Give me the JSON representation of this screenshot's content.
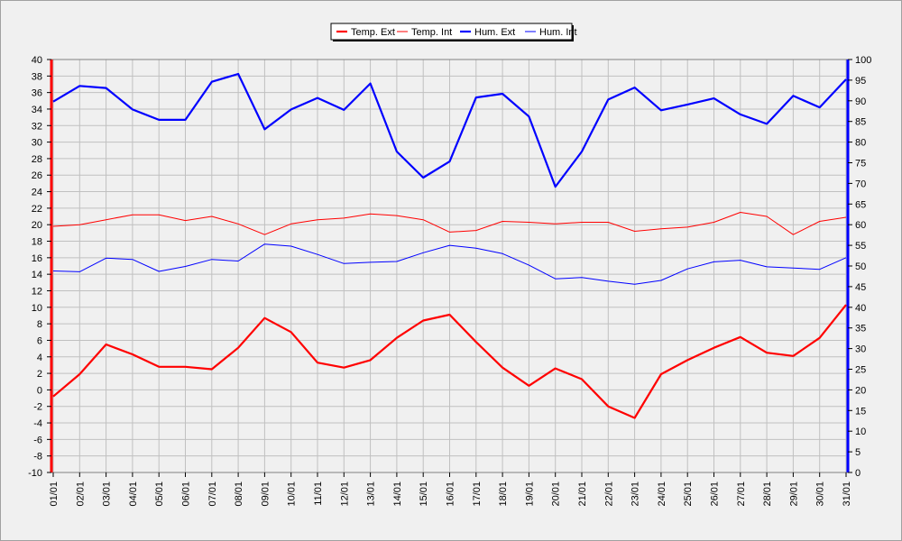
{
  "chart_data": {
    "type": "line",
    "categories": [
      "01/01",
      "02/01",
      "03/01",
      "04/01",
      "05/01",
      "06/01",
      "07/01",
      "08/01",
      "09/01",
      "10/01",
      "11/01",
      "12/01",
      "13/01",
      "14/01",
      "15/01",
      "16/01",
      "17/01",
      "18/01",
      "19/01",
      "20/01",
      "21/01",
      "22/01",
      "23/01",
      "24/01",
      "25/01",
      "26/01",
      "27/01",
      "28/01",
      "29/01",
      "30/01",
      "31/01"
    ],
    "y_left": {
      "ticks": [
        40,
        38,
        36,
        34,
        32,
        30,
        28,
        26,
        24,
        22,
        20,
        18,
        16,
        14,
        12,
        10,
        8,
        6,
        4,
        2,
        0,
        -2,
        -4,
        -6,
        -8,
        -10
      ],
      "ylim": [
        -10,
        40
      ],
      "color": "#ff0000"
    },
    "y_right": {
      "ticks": [
        100,
        95,
        90,
        85,
        80,
        75,
        70,
        65,
        60,
        55,
        50,
        45,
        40,
        35,
        30,
        25,
        20,
        15,
        10,
        5,
        0
      ],
      "ylim": [
        0,
        100
      ],
      "color": "#0000ff"
    },
    "grid": true,
    "legend_position": "top-center",
    "series": [
      {
        "name": "Temp. Ext",
        "axis": "left",
        "color": "#ff0000",
        "weight": "thick",
        "values": [
          -0.8,
          1.9,
          5.5,
          4.3,
          2.8,
          2.8,
          2.5,
          5.1,
          8.7,
          7.0,
          3.3,
          2.7,
          3.6,
          6.3,
          8.4,
          9.1,
          5.8,
          2.7,
          0.5,
          2.6,
          1.3,
          -2.0,
          -3.4,
          1.9,
          3.6,
          5.1,
          6.4,
          4.5,
          4.1,
          6.3,
          10.3
        ]
      },
      {
        "name": "Temp. Int",
        "axis": "left",
        "color": "#ff0000",
        "weight": "thin",
        "values": [
          19.8,
          20.0,
          20.6,
          21.2,
          21.2,
          20.5,
          21.0,
          20.1,
          18.8,
          20.1,
          20.6,
          20.8,
          21.3,
          21.1,
          20.6,
          19.1,
          19.3,
          20.4,
          20.3,
          20.1,
          20.3,
          20.3,
          19.2,
          19.5,
          19.7,
          20.3,
          21.5,
          21.0,
          18.8,
          20.4,
          20.9
        ]
      },
      {
        "name": "Hum. Ext",
        "axis": "right",
        "color": "#0000ff",
        "weight": "thick",
        "values": [
          89.8,
          93.6,
          93.1,
          87.9,
          85.4,
          85.4,
          94.6,
          96.5,
          83.1,
          87.9,
          90.7,
          87.8,
          94.2,
          77.7,
          71.4,
          75.3,
          90.8,
          91.7,
          86.2,
          69.2,
          77.7,
          90.3,
          93.2,
          87.7,
          89.1,
          90.6,
          86.7,
          84.4,
          91.2,
          88.4,
          95.2
        ]
      },
      {
        "name": "Hum. Int",
        "axis": "right",
        "color": "#0000ff",
        "weight": "thin",
        "values": [
          48.8,
          48.6,
          51.9,
          51.6,
          48.7,
          49.9,
          51.6,
          51.2,
          55.3,
          54.8,
          52.8,
          50.6,
          50.9,
          51.1,
          53.2,
          55.0,
          54.3,
          53.0,
          50.2,
          46.9,
          47.2,
          46.3,
          45.6,
          46.5,
          49.3,
          51.0,
          51.4,
          49.8,
          49.5,
          49.2,
          52.0
        ]
      }
    ]
  }
}
